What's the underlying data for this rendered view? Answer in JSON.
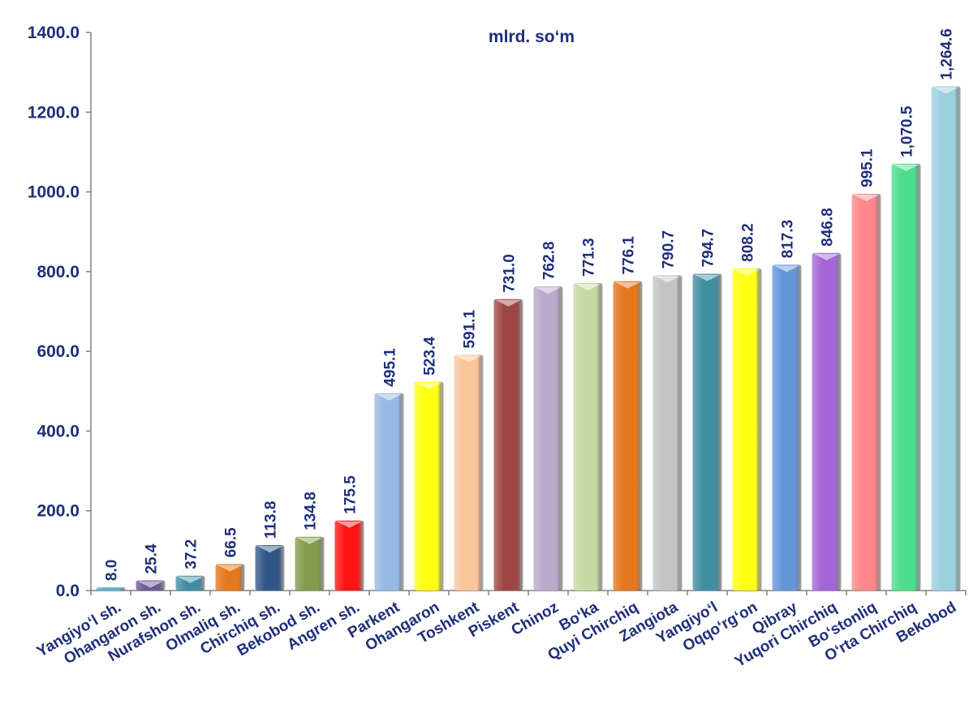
{
  "chart_data": {
    "type": "bar",
    "unit_label": "mlrd. so‘m",
    "categories": [
      "Yangiyo‘l sh.",
      "Ohangaron sh.",
      "Nurafshon sh.",
      "Olmaliq sh.",
      "Chirchiq sh.",
      "Bekobod sh.",
      "Angren sh.",
      "Parkent",
      "Ohangaron",
      "Toshkent",
      "Piskent",
      "Chinoz",
      "Bo‘ka",
      "Quyi Chirchiq",
      "Zangiota",
      "Yangiyo‘l",
      "Oqqo‘rg‘on",
      "Qibray",
      "Yuqori Chirchiq",
      "Bo‘stonliq",
      "O‘rta Chirchiq",
      "Bekobod"
    ],
    "values": [
      8.0,
      25.4,
      37.2,
      66.5,
      113.8,
      134.8,
      175.5,
      495.1,
      523.4,
      591.1,
      731.0,
      762.8,
      771.3,
      776.1,
      790.7,
      794.7,
      808.2,
      817.3,
      846.8,
      995.1,
      1070.5,
      1264.6
    ],
    "data_labels": [
      "8.0",
      "25.4",
      "37.2",
      "66.5",
      "113.8",
      "134.8",
      "175.5",
      "495.1",
      "523.4",
      "591.1",
      "731.0",
      "762.8",
      "771.3",
      "776.1",
      "790.7",
      "794.7",
      "808.2",
      "817.3",
      "846.8",
      "995.1",
      "1,070.5",
      "1,264.6"
    ],
    "bar_colors": [
      "#4bacc6",
      "#5f4b8b",
      "#31859c",
      "#e36c09",
      "#1f497d",
      "#77933c",
      "#ff0000",
      "#8db3e2",
      "#ffff00",
      "#fac090",
      "#953735",
      "#b3a2c7",
      "#c3d69b",
      "#e36c09",
      "#bfbfbf",
      "#31859c",
      "#ffff00",
      "#558ed5",
      "#9c59d1",
      "#ff7c80",
      "#3ddc84",
      "#93cddd"
    ],
    "ylim": [
      0,
      1400
    ],
    "yticks": [
      "0.0",
      "200.0",
      "400.0",
      "600.0",
      "800.0",
      "1000.0",
      "1200.0",
      "1400.0"
    ],
    "ytick_values": [
      0,
      200,
      400,
      600,
      800,
      1000,
      1200,
      1400
    ],
    "grid": false,
    "legend": "none",
    "title": "",
    "xlabel": "",
    "ylabel": ""
  }
}
